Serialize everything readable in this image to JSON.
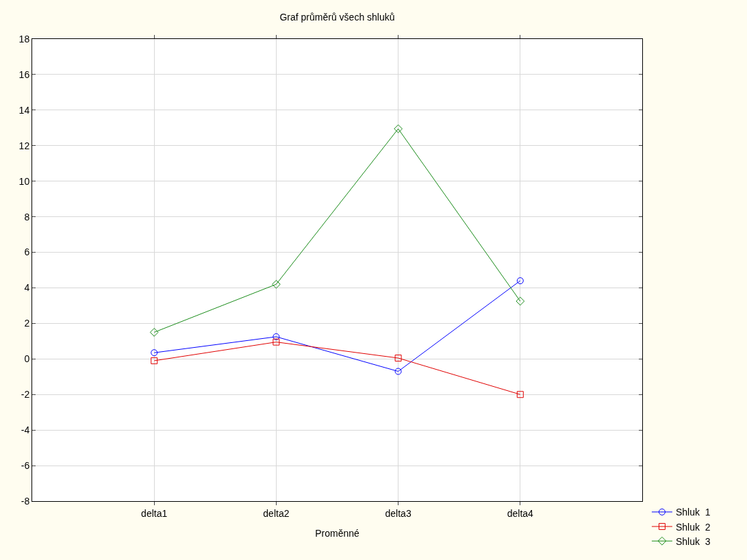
{
  "chart_data": {
    "type": "line",
    "title": "Graf průměrů všech shluků",
    "xlabel": "Proměnné",
    "categories": [
      "delta1",
      "delta2",
      "delta3",
      "delta4"
    ],
    "ylim": [
      -8,
      18
    ],
    "yticks": [
      -8,
      -6,
      -4,
      -2,
      0,
      2,
      4,
      6,
      8,
      10,
      12,
      14,
      16,
      18
    ],
    "grid": true,
    "legend": "bottom right",
    "line_style": "solid",
    "series": [
      {
        "name": "Shluk  1",
        "color": "#0000ff",
        "marker": "circle",
        "values": [
          0.35,
          1.25,
          -0.7,
          4.4
        ]
      },
      {
        "name": "Shluk  2",
        "color": "#e00000",
        "marker": "square",
        "values": [
          -0.1,
          0.95,
          0.05,
          -2.0
        ]
      },
      {
        "name": "Shluk  3",
        "color": "#1a8c1a",
        "marker": "diamond",
        "values": [
          1.5,
          4.2,
          12.95,
          3.25
        ]
      }
    ]
  }
}
